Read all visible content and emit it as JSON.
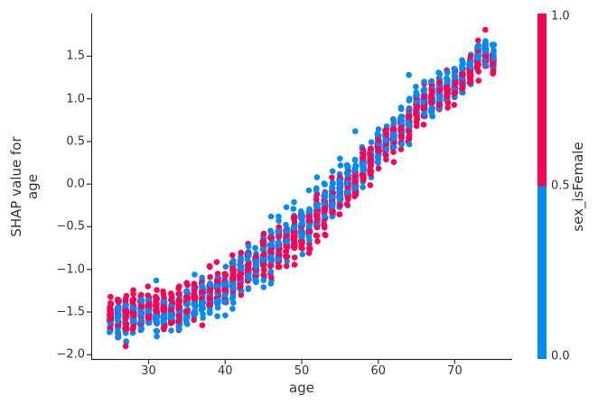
{
  "figure": {
    "background": "#ffffff",
    "text_color": "#333333",
    "spine_color": "#333333"
  },
  "chart_data": {
    "type": "scatter",
    "title": "",
    "xlabel": "age",
    "ylabel": "SHAP value for age",
    "ylabel_lines": [
      "SHAP value for",
      "age"
    ],
    "xlim": [
      22.5,
      77.5
    ],
    "ylim": [
      -2.05,
      2.0
    ],
    "x_ticks": [
      30,
      40,
      50,
      60,
      70
    ],
    "x_tick_labels": [
      "30",
      "40",
      "50",
      "60",
      "70"
    ],
    "y_ticks": [
      1.5,
      1.0,
      0.5,
      0.0,
      -0.5,
      -1.0,
      -1.5,
      -2.0
    ],
    "y_tick_labels": [
      "1.5",
      "1.0",
      "0.5",
      "0.0",
      "−0.5",
      "−1.0",
      "−1.5",
      "−2.0"
    ],
    "grid": false,
    "legend": null,
    "point_colors": {
      "female": "#ff0052",
      "male": "#008bfb"
    },
    "point_radius": 3.3,
    "points_per_age": 45,
    "clusters_format": "[age, shap_center, shap_half_spread]",
    "clusters": [
      [
        25,
        -1.55,
        0.27
      ],
      [
        26,
        -1.56,
        0.27
      ],
      [
        27,
        -1.55,
        0.28
      ],
      [
        28,
        -1.52,
        0.27
      ],
      [
        29,
        -1.52,
        0.27
      ],
      [
        30,
        -1.5,
        0.27
      ],
      [
        31,
        -1.5,
        0.27
      ],
      [
        32,
        -1.5,
        0.28
      ],
      [
        33,
        -1.48,
        0.27
      ],
      [
        34,
        -1.45,
        0.28
      ],
      [
        35,
        -1.42,
        0.28
      ],
      [
        36,
        -1.38,
        0.28
      ],
      [
        37,
        -1.34,
        0.28
      ],
      [
        38,
        -1.3,
        0.3
      ],
      [
        39,
        -1.25,
        0.3
      ],
      [
        40,
        -1.22,
        0.3
      ],
      [
        41,
        -1.15,
        0.3
      ],
      [
        42,
        -1.08,
        0.3
      ],
      [
        43,
        -1.0,
        0.3
      ],
      [
        44,
        -0.95,
        0.3
      ],
      [
        45,
        -0.88,
        0.32
      ],
      [
        46,
        -0.82,
        0.32
      ],
      [
        47,
        -0.75,
        0.33
      ],
      [
        48,
        -0.66,
        0.34
      ],
      [
        49,
        -0.58,
        0.34
      ],
      [
        50,
        -0.55,
        0.35
      ],
      [
        51,
        -0.47,
        0.35
      ],
      [
        52,
        -0.36,
        0.36
      ],
      [
        53,
        -0.27,
        0.35
      ],
      [
        54,
        -0.18,
        0.34
      ],
      [
        55,
        -0.12,
        0.32
      ],
      [
        56,
        -0.03,
        0.3
      ],
      [
        57,
        0.07,
        0.3
      ],
      [
        58,
        0.16,
        0.3
      ],
      [
        59,
        0.28,
        0.28
      ],
      [
        60,
        0.42,
        0.26
      ],
      [
        61,
        0.48,
        0.26
      ],
      [
        62,
        0.55,
        0.26
      ],
      [
        63,
        0.62,
        0.27
      ],
      [
        64,
        0.76,
        0.27
      ],
      [
        65,
        0.9,
        0.24
      ],
      [
        66,
        0.97,
        0.24
      ],
      [
        67,
        1.02,
        0.24
      ],
      [
        68,
        1.07,
        0.24
      ],
      [
        69,
        1.1,
        0.23
      ],
      [
        70,
        1.15,
        0.23
      ],
      [
        71,
        1.22,
        0.22
      ],
      [
        72,
        1.33,
        0.22
      ],
      [
        73,
        1.48,
        0.24
      ],
      [
        74,
        1.52,
        0.22
      ],
      [
        75,
        1.43,
        0.18
      ]
    ],
    "outliers_format": "[age, shap_value, is_female]",
    "outliers": [
      [
        27,
        -1.9,
        1
      ],
      [
        31,
        -1.13,
        0
      ],
      [
        34,
        -1.2,
        1
      ],
      [
        36,
        -1.06,
        0
      ],
      [
        38,
        -0.97,
        1
      ],
      [
        46,
        -0.38,
        0
      ],
      [
        48,
        -0.27,
        0
      ],
      [
        52,
        0.08,
        0
      ],
      [
        55,
        0.3,
        0
      ],
      [
        57,
        0.62,
        0
      ],
      [
        64,
        1.28,
        0
      ],
      [
        74,
        1.81,
        1
      ],
      [
        75,
        1.62,
        0
      ]
    ],
    "colorbar": {
      "label": "sex_isFemale",
      "ticks": [
        1.0,
        0.5,
        0.0
      ],
      "tick_labels": [
        "1.0",
        "0.5",
        "0.0"
      ],
      "top_color": "#ff0052",
      "bottom_color": "#008bfb",
      "boundary": 0.5
    }
  }
}
